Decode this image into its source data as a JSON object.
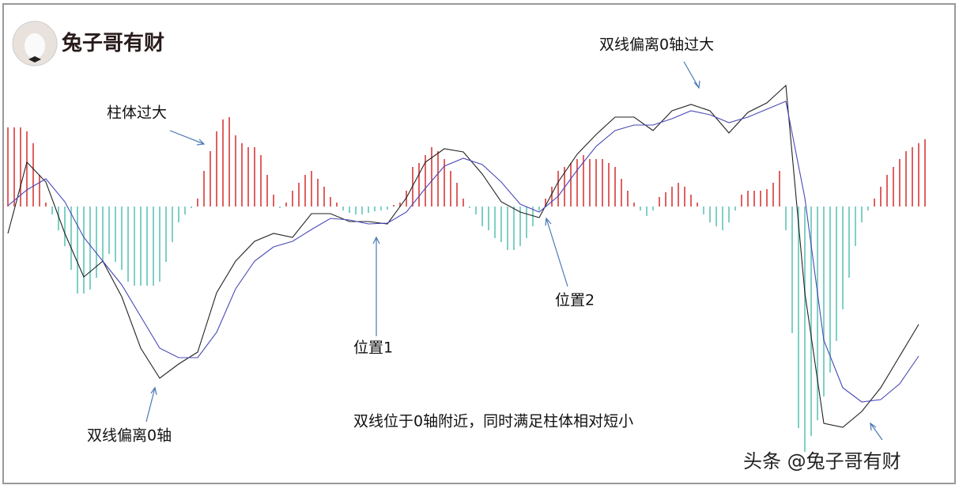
{
  "chart_data": {
    "type": "macd",
    "logo": "兔子哥有财",
    "watermark": "头条 @兔子哥有财",
    "annotations": [
      "双线偏离0轴过大",
      "柱体过大",
      "位置1",
      "位置2",
      "双线偏离0轴",
      "双线位于0轴附近，同时满足柱体相对短小"
    ],
    "ylim": [
      -3.49,
      2.56
    ],
    "histogram": {
      "color_positive": "#e06060",
      "color_negative": "#7fd0c6",
      "values": [
        1.0,
        1.0,
        1.0,
        0.95,
        0.8,
        0.4,
        0.05,
        -0.1,
        -0.3,
        -0.5,
        -0.8,
        -1.1,
        -1.1,
        -1.05,
        -0.9,
        -0.7,
        -0.6,
        -0.7,
        -0.8,
        -0.95,
        -1.0,
        -1.0,
        -1.0,
        -1.0,
        -0.95,
        -0.7,
        -0.45,
        -0.2,
        -0.1,
        -0.02,
        0.1,
        0.45,
        0.7,
        0.95,
        1.1,
        1.13,
        0.9,
        0.8,
        0.75,
        0.75,
        0.65,
        0.4,
        0.15,
        -0.02,
        0.05,
        0.2,
        0.3,
        0.4,
        0.45,
        0.35,
        0.25,
        0.12,
        0.05,
        -0.05,
        -0.08,
        -0.1,
        -0.1,
        -0.08,
        -0.06,
        -0.05,
        -0.04,
        0.02,
        0.05,
        0.2,
        0.5,
        0.55,
        0.65,
        0.75,
        0.7,
        0.6,
        0.45,
        0.3,
        0.1,
        -0.02,
        -0.1,
        -0.25,
        -0.3,
        -0.4,
        -0.45,
        -0.55,
        -0.55,
        -0.5,
        -0.4,
        -0.25,
        -0.05,
        0.1,
        0.25,
        0.45,
        0.5,
        0.55,
        0.6,
        0.65,
        0.6,
        0.6,
        0.6,
        0.55,
        0.5,
        0.35,
        0.2,
        0.05,
        -0.05,
        -0.12,
        -0.05,
        0.12,
        0.18,
        0.25,
        0.3,
        0.25,
        0.15,
        0.05,
        -0.1,
        -0.2,
        -0.25,
        -0.3,
        -0.2,
        -0.05,
        0.15,
        0.2,
        0.2,
        0.2,
        0.22,
        0.3,
        0.45,
        -0.3,
        -1.6,
        -2.8,
        -3.1,
        -2.9,
        -2.7,
        -2.4,
        -2.1,
        -1.7,
        -1.3,
        -0.9,
        -0.5,
        -0.2,
        -0.05,
        0.1,
        0.25,
        0.4,
        0.5,
        0.6,
        0.7,
        0.75,
        0.8,
        0.85
      ]
    },
    "series": [
      {
        "color": "#222222",
        "values": [
          -0.34,
          0.56,
          0.31,
          -0.34,
          -0.89,
          -0.69,
          -1.14,
          -1.79,
          -2.17,
          -1.99,
          -1.84,
          -1.09,
          -0.69,
          -0.44,
          -0.34,
          -0.39,
          -0.09,
          -0.09,
          -0.19,
          -0.19,
          -0.22,
          0.11,
          0.56,
          0.73,
          0.69,
          0.41,
          0.06,
          -0.07,
          -0.14,
          0.31,
          0.66,
          0.91,
          1.13,
          1.13,
          0.96,
          1.21,
          1.29,
          1.21,
          0.93,
          1.19,
          1.31,
          1.53,
          -1.09,
          -2.74,
          -2.79,
          -2.59,
          -2.29,
          -1.89,
          -1.49
        ]
      },
      {
        "color": "#4848b8",
        "values": [
          0.01,
          0.21,
          0.35,
          0.06,
          -0.39,
          -0.69,
          -0.99,
          -1.39,
          -1.79,
          -1.91,
          -1.91,
          -1.59,
          -1.04,
          -0.69,
          -0.51,
          -0.44,
          -0.29,
          -0.15,
          -0.17,
          -0.22,
          -0.21,
          -0.07,
          0.23,
          0.51,
          0.61,
          0.53,
          0.31,
          0.03,
          -0.07,
          0.13,
          0.46,
          0.76,
          0.96,
          1.03,
          1.03,
          1.11,
          1.21,
          1.16,
          1.06,
          1.13,
          1.23,
          1.33,
          0.11,
          -1.69,
          -2.29,
          -2.47,
          -2.44,
          -2.24,
          -1.89
        ]
      }
    ]
  }
}
